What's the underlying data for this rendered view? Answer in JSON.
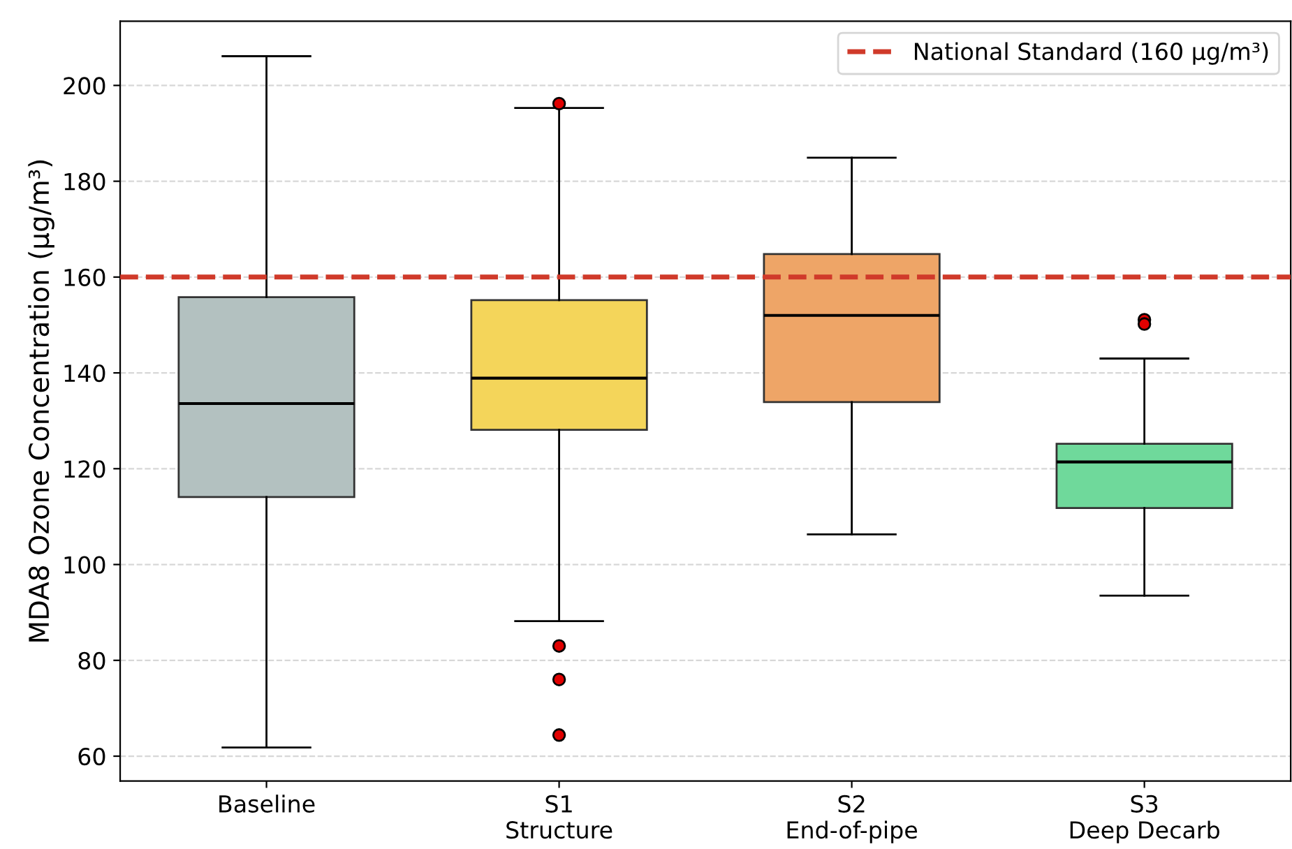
{
  "chart_data": {
    "type": "box",
    "ylabel": "MDA8 Ozone Concentration (μg/m³)",
    "categories": [
      "Baseline",
      "S1\nStructure",
      "S2\nEnd-of-pipe",
      "S3\nDeep Decarb"
    ],
    "colors": [
      "#b3c1c0",
      "#f4d55a",
      "#eea567",
      "#6fd99b"
    ],
    "boxes": [
      {
        "low": 61.8,
        "q1": 114.1,
        "median": 133.6,
        "q3": 155.8,
        "high": 206.1
      },
      {
        "low": 88.2,
        "q1": 128.1,
        "median": 138.9,
        "q3": 155.2,
        "high": 195.3,
        "outliers": [
          196.2,
          83.0,
          76.0,
          64.4
        ]
      },
      {
        "low": 106.3,
        "q1": 133.9,
        "median": 152.0,
        "q3": 164.8,
        "high": 184.9
      },
      {
        "low": 93.5,
        "q1": 111.8,
        "median": 121.4,
        "q3": 125.2,
        "high": 143.0,
        "outliers": [
          151.1,
          150.2
        ]
      }
    ],
    "ylim": [
      54.8,
      213.4
    ],
    "yticks": [
      60,
      80,
      100,
      120,
      140,
      160,
      180,
      200
    ],
    "ref_lines": [
      {
        "axis": "y",
        "value": 160,
        "label": "National Standard (160 μg/m³)",
        "color": "#d03a2a",
        "line_style": "dashed"
      }
    ],
    "grid": "y",
    "legend": "top right"
  }
}
